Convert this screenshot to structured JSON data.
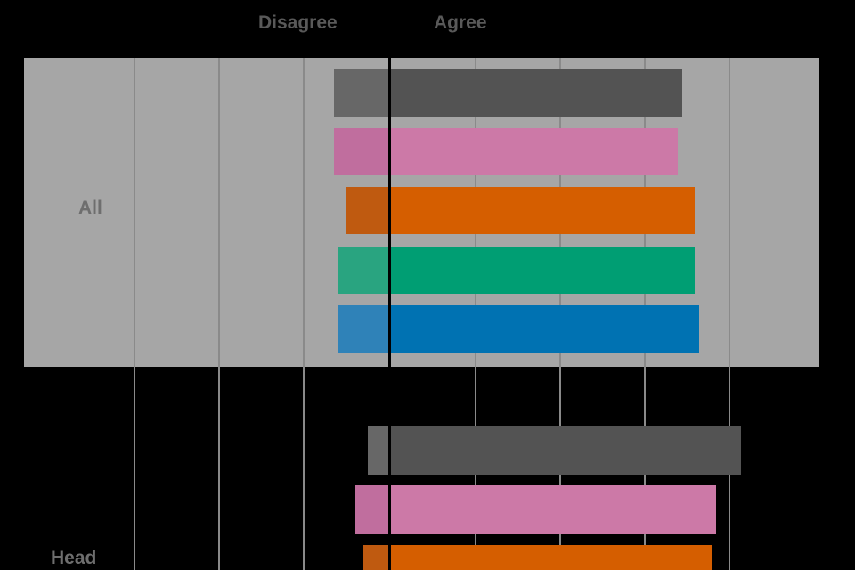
{
  "header": {
    "disagree_label": "Disagree",
    "agree_label": "Agree"
  },
  "chart_data": {
    "type": "bar",
    "variant": "diverging-likert-horizontal",
    "title": "",
    "xlabel": "",
    "ylabel": "",
    "x_axis": {
      "unit": "percent",
      "gridline_step": 20,
      "zero_at_divider": true,
      "estimated_from_gridlines": true
    },
    "left_side_label": "Disagree",
    "right_side_label": "Agree",
    "groups": [
      {
        "label": "All",
        "highlight_band": true,
        "bars": [
          {
            "series": "gray",
            "disagree_pct": 13,
            "agree_pct": 69
          },
          {
            "series": "pink",
            "disagree_pct": 13,
            "agree_pct": 68
          },
          {
            "series": "orange",
            "disagree_pct": 10,
            "agree_pct": 72
          },
          {
            "series": "green",
            "disagree_pct": 12,
            "agree_pct": 72
          },
          {
            "series": "blue",
            "disagree_pct": 12,
            "agree_pct": 73
          }
        ]
      },
      {
        "label": "Head",
        "highlight_band": false,
        "bars": [
          {
            "series": "gray",
            "disagree_pct": 5,
            "agree_pct": 83
          },
          {
            "series": "pink",
            "disagree_pct": 8,
            "agree_pct": 77
          },
          {
            "series": "orange",
            "disagree_pct": 6,
            "agree_pct": 76
          }
        ]
      }
    ],
    "colors": {
      "gray": {
        "left": "#676767",
        "right": "#535353"
      },
      "pink": {
        "left": "#c06e9e",
        "right": "#cc79a7"
      },
      "orange": {
        "left": "#bf5a10",
        "right": "#d55e00"
      },
      "green": {
        "left": "#29a480",
        "right": "#009e73"
      },
      "blue": {
        "left": "#2f82b8",
        "right": "#0072b2"
      }
    },
    "band_color": "#a6a6a6",
    "gridline_color": "#8a8a8a",
    "zero_line_color": "#000000",
    "background_color": "#000000",
    "legend": "none"
  }
}
